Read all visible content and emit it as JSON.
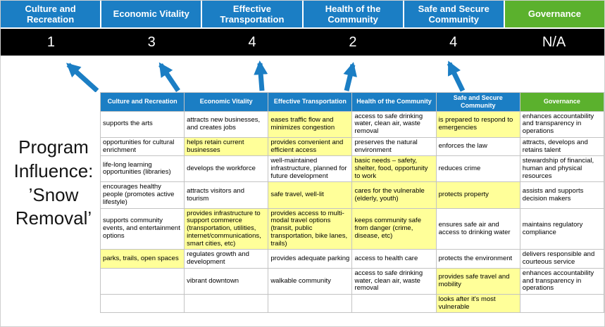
{
  "colors": {
    "pillar_blue": "#1B7EC4",
    "governance_green": "#5BB12D",
    "highlight_yellow": "#FFFF99",
    "score_bar_black": "#000000",
    "arrow_blue": "#1B7EC4"
  },
  "title": {
    "text": "Program\nInfluence:\n’Snow\nRemoval’"
  },
  "scoreboard": [
    {
      "label": "Culture and Recreation",
      "score": "1",
      "theme": "blue"
    },
    {
      "label": "Economic Vitality",
      "score": "3",
      "theme": "blue"
    },
    {
      "label": "Effective Transportation",
      "score": "4",
      "theme": "blue"
    },
    {
      "label": "Health of the Community",
      "score": "2",
      "theme": "blue"
    },
    {
      "label": "Safe and Secure Community",
      "score": "4",
      "theme": "blue"
    },
    {
      "label": "Governance",
      "score": "N/A",
      "theme": "green"
    }
  ],
  "matrix": {
    "headers": [
      {
        "label": "Culture and Recreation",
        "theme": "blue"
      },
      {
        "label": "Economic Vitality",
        "theme": "blue"
      },
      {
        "label": "Effective Transportation",
        "theme": "blue"
      },
      {
        "label": "Health of the Community",
        "theme": "blue"
      },
      {
        "label": "Safe and Secure Community",
        "theme": "blue"
      },
      {
        "label": "Governance",
        "theme": "green"
      }
    ],
    "rows": [
      [
        {
          "text": "supports the arts",
          "highlight": false
        },
        {
          "text": "attracts new businesses, and creates jobs",
          "highlight": false
        },
        {
          "text": "eases traffic flow and minimizes congestion",
          "highlight": true
        },
        {
          "text": "access to safe drinking water, clean air, waste removal",
          "highlight": false
        },
        {
          "text": "is prepared to respond to emergencies",
          "highlight": true
        },
        {
          "text": "enhances accountability and transparency in operations",
          "highlight": false
        }
      ],
      [
        {
          "text": "opportunities for cultural enrichment",
          "highlight": false
        },
        {
          "text": "helps retain current businesses",
          "highlight": true
        },
        {
          "text": "provides convenient and efficient access",
          "highlight": true
        },
        {
          "text": "preserves the natural environment",
          "highlight": false
        },
        {
          "text": "enforces the law",
          "highlight": false
        },
        {
          "text": "attracts, develops and retains talent",
          "highlight": false
        }
      ],
      [
        {
          "text": "life-long learning opportunities (libraries)",
          "highlight": false
        },
        {
          "text": "develops the workforce",
          "highlight": false
        },
        {
          "text": "well-maintained infrastructure, planned for future development",
          "highlight": false
        },
        {
          "text": "basic needs – safety, shelter, food, opportunity to work",
          "highlight": true
        },
        {
          "text": "reduces crime",
          "highlight": false
        },
        {
          "text": "stewardship of financial, human and physical resources",
          "highlight": false
        }
      ],
      [
        {
          "text": "encourages healthy people (promotes active lifestyle)",
          "highlight": false
        },
        {
          "text": "attracts visitors and tourism",
          "highlight": false
        },
        {
          "text": "safe travel, well-lit",
          "highlight": true
        },
        {
          "text": "cares for the vulnerable (elderly, youth)",
          "highlight": true
        },
        {
          "text": "protects property",
          "highlight": true
        },
        {
          "text": "assists and supports decision makers",
          "highlight": false
        }
      ],
      [
        {
          "text": "supports community events, and entertainment options",
          "highlight": false
        },
        {
          "text": "provides infrastructure to support commerce (transportation, utilities, internet/communications, smart cities, etc)",
          "highlight": true
        },
        {
          "text": "provides access to multi-modal travel options (transit, public transportation, bike lanes, trails)",
          "highlight": true
        },
        {
          "text": "keeps community safe from danger (crime, disease, etc)",
          "highlight": true
        },
        {
          "text": "ensures safe air and access to drinking water",
          "highlight": false
        },
        {
          "text": "maintains regulatory compliance",
          "highlight": false
        }
      ],
      [
        {
          "text": "parks, trails, open spaces",
          "highlight": true
        },
        {
          "text": "regulates growth and development",
          "highlight": false
        },
        {
          "text": "provides adequate parking",
          "highlight": false
        },
        {
          "text": "access to health care",
          "highlight": false
        },
        {
          "text": "protects the environment",
          "highlight": false
        },
        {
          "text": "delivers responsible and courteous service",
          "highlight": false
        }
      ],
      [
        {
          "text": "",
          "highlight": false
        },
        {
          "text": "vibrant downtown",
          "highlight": false
        },
        {
          "text": "walkable community",
          "highlight": false
        },
        {
          "text": "access to safe drinking water, clean air, waste removal",
          "highlight": false
        },
        {
          "text": "provides safe travel and mobility",
          "highlight": true
        },
        {
          "text": "enhances accountability and transparency in operations",
          "highlight": false
        }
      ],
      [
        {
          "text": "",
          "highlight": false
        },
        {
          "text": "",
          "highlight": false
        },
        {
          "text": "",
          "highlight": false
        },
        {
          "text": "",
          "highlight": false
        },
        {
          "text": "looks after it's most vulnerable",
          "highlight": true
        },
        {
          "text": "",
          "highlight": false
        }
      ]
    ]
  }
}
